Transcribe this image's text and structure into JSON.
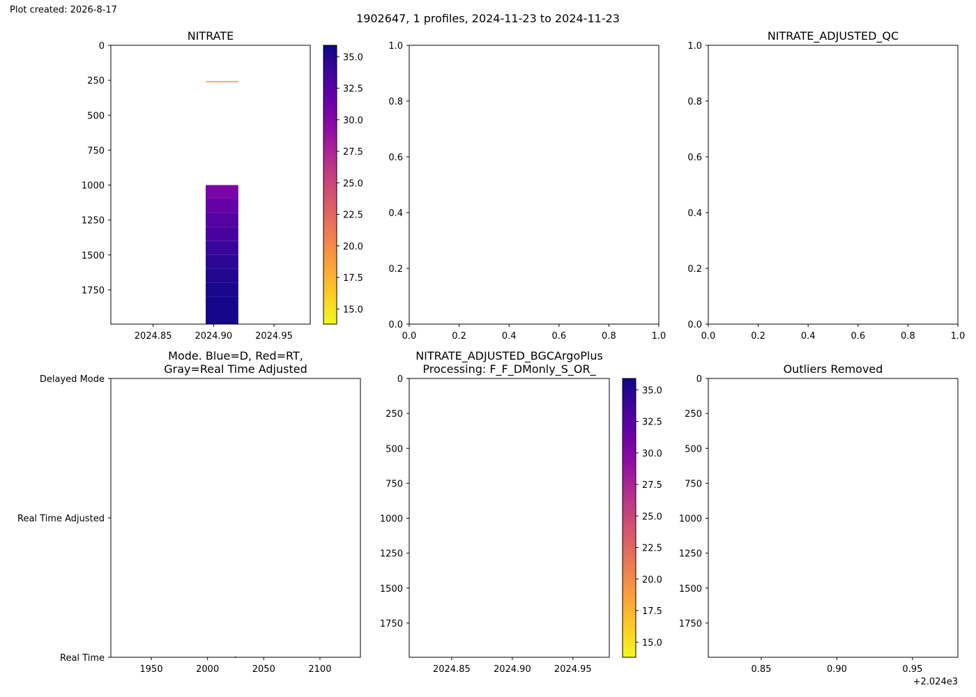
{
  "created_label": "Plot created: 2026-8-17",
  "suptitle": "1902647, 1 profiles, 2024-11-23 to 2024-11-23",
  "colors": {
    "axis": "#000000",
    "orange_line": "#e07b39",
    "mode_point": "#1f7a8c"
  },
  "chart_data": [
    {
      "id": "nitrate",
      "type": "heatmap",
      "title": "NITRATE",
      "xlabel": "",
      "ylabel": "",
      "xlim": [
        2024.815,
        2024.98
      ],
      "ylim": [
        1995,
        0
      ],
      "y_inverted": true,
      "x_ticks": [
        2024.85,
        2024.9,
        2024.95
      ],
      "x_tick_labels": [
        "2024.85",
        "2024.90",
        "2024.95"
      ],
      "y_ticks": [
        0,
        250,
        500,
        750,
        1000,
        1250,
        1500,
        1750
      ],
      "y_tick_labels": [
        "0",
        "250",
        "500",
        "750",
        "1000",
        "1250",
        "1500",
        "1750"
      ],
      "profile_x_range": [
        2024.8935,
        2024.9205
      ],
      "cells": [
        {
          "pressure_top": 257,
          "pressure_bottom": 262,
          "value": 20.0
        },
        {
          "pressure_top": 1000,
          "pressure_bottom": 1100,
          "value": 30.5
        },
        {
          "pressure_top": 1100,
          "pressure_bottom": 1200,
          "value": 31.7
        },
        {
          "pressure_top": 1200,
          "pressure_bottom": 1300,
          "value": 32.6
        },
        {
          "pressure_top": 1300,
          "pressure_bottom": 1400,
          "value": 33.3
        },
        {
          "pressure_top": 1400,
          "pressure_bottom": 1500,
          "value": 34.0
        },
        {
          "pressure_top": 1500,
          "pressure_bottom": 1600,
          "value": 34.6
        },
        {
          "pressure_top": 1600,
          "pressure_bottom": 1700,
          "value": 35.0
        },
        {
          "pressure_top": 1700,
          "pressure_bottom": 1800,
          "value": 35.4
        },
        {
          "pressure_top": 1800,
          "pressure_bottom": 1995,
          "value": 35.6
        }
      ],
      "colorbar": {
        "colormap": "plasma_r",
        "range": [
          13.8,
          35.9
        ],
        "ticks": [
          15.0,
          17.5,
          20.0,
          22.5,
          25.0,
          27.5,
          30.0,
          32.5,
          35.0
        ],
        "tick_labels": [
          "15.0",
          "17.5",
          "20.0",
          "22.5",
          "25.0",
          "27.5",
          "30.0",
          "32.5",
          "35.0"
        ]
      }
    },
    {
      "id": "empty-1",
      "type": "scatter",
      "title": "",
      "xlabel": "",
      "ylabel": "",
      "xlim": [
        0,
        1
      ],
      "ylim": [
        0,
        1
      ],
      "x_ticks": [
        0,
        0.2,
        0.4,
        0.6,
        0.8,
        1.0
      ],
      "x_tick_labels": [
        "0.0",
        "0.2",
        "0.4",
        "0.6",
        "0.8",
        "1.0"
      ],
      "y_ticks": [
        0,
        0.2,
        0.4,
        0.6,
        0.8,
        1.0
      ],
      "y_tick_labels": [
        "0.0",
        "0.2",
        "0.4",
        "0.6",
        "0.8",
        "1.0"
      ],
      "points": []
    },
    {
      "id": "nitrate-adjusted-qc",
      "type": "scatter",
      "title": "NITRATE_ADJUSTED_QC",
      "xlabel": "",
      "ylabel": "",
      "xlim": [
        0,
        1
      ],
      "ylim": [
        0,
        1
      ],
      "x_ticks": [
        0,
        0.2,
        0.4,
        0.6,
        0.8,
        1.0
      ],
      "x_tick_labels": [
        "0.0",
        "0.2",
        "0.4",
        "0.6",
        "0.8",
        "1.0"
      ],
      "y_ticks": [
        0,
        0.2,
        0.4,
        0.6,
        0.8,
        1.0
      ],
      "y_tick_labels": [
        "0.0",
        "0.2",
        "0.4",
        "0.6",
        "0.8",
        "1.0"
      ],
      "points": []
    },
    {
      "id": "mode",
      "type": "scatter",
      "title": "Mode. Blue=D, Red=RT,\nGray=Real Time Adjusted",
      "xlabel": "",
      "ylabel": "",
      "xlim": [
        1914,
        2136
      ],
      "ylim": [
        0,
        2
      ],
      "x_ticks": [
        1950,
        2000,
        2050,
        2100
      ],
      "x_tick_labels": [
        "1950",
        "2000",
        "2050",
        "2100"
      ],
      "y_ticks": [
        2,
        1,
        0
      ],
      "y_tick_labels": [
        "Delayed Mode",
        "Real Time Adjusted",
        "Real Time"
      ],
      "points": [
        {
          "x": 2024.9,
          "y": 0
        }
      ]
    },
    {
      "id": "nitrate-adjusted-bgc",
      "type": "heatmap",
      "title": "NITRATE_ADJUSTED_BGCArgoPlus\nProcessing: F_F_DMonly_S_OR_",
      "xlabel": "",
      "ylabel": "",
      "xlim": [
        2024.815,
        2024.98
      ],
      "ylim": [
        1995,
        0
      ],
      "y_inverted": true,
      "x_ticks": [
        2024.85,
        2024.9,
        2024.95
      ],
      "x_tick_labels": [
        "2024.85",
        "2024.90",
        "2024.95"
      ],
      "y_ticks": [
        0,
        250,
        500,
        750,
        1000,
        1250,
        1500,
        1750
      ],
      "y_tick_labels": [
        "0",
        "250",
        "500",
        "750",
        "1000",
        "1250",
        "1500",
        "1750"
      ],
      "cells": [],
      "colorbar": {
        "colormap": "plasma_r",
        "range": [
          13.8,
          35.9
        ],
        "ticks": [
          15.0,
          17.5,
          20.0,
          22.5,
          25.0,
          27.5,
          30.0,
          32.5,
          35.0
        ],
        "tick_labels": [
          "15.0",
          "17.5",
          "20.0",
          "22.5",
          "25.0",
          "27.5",
          "30.0",
          "32.5",
          "35.0"
        ]
      }
    },
    {
      "id": "outliers-removed",
      "type": "heatmap",
      "title": "Outliers Removed",
      "xlabel": "",
      "ylabel": "",
      "xlim": [
        0.815,
        0.98
      ],
      "ylim": [
        1995,
        0
      ],
      "y_inverted": true,
      "x_ticks": [
        0.85,
        0.9,
        0.95
      ],
      "x_tick_labels": [
        "0.85",
        "0.90",
        "0.95"
      ],
      "x_offset_label": "+2.024e3",
      "y_ticks": [
        0,
        250,
        500,
        750,
        1000,
        1250,
        1500,
        1750
      ],
      "y_tick_labels": [
        "0",
        "250",
        "500",
        "750",
        "1000",
        "1250",
        "1500",
        "1750"
      ],
      "cells": []
    }
  ]
}
